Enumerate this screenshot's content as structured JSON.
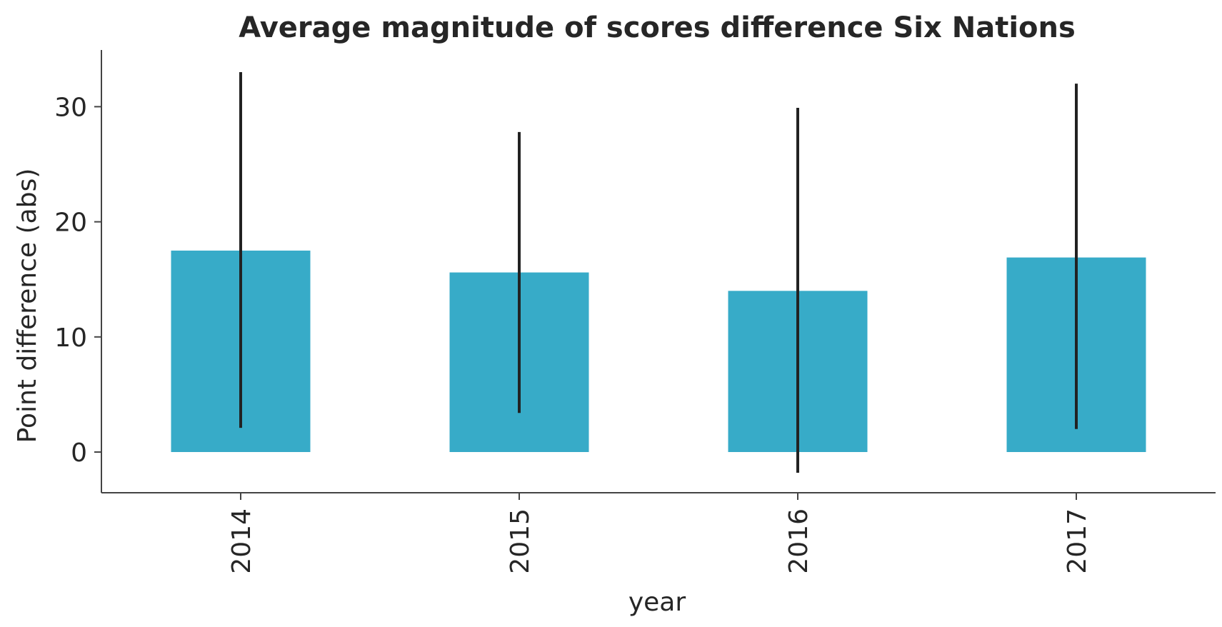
{
  "chart_data": {
    "type": "bar",
    "title": "Average magnitude of scores difference Six Nations",
    "xlabel": "year",
    "ylabel": "Point difference (abs)",
    "categories": [
      "2014",
      "2015",
      "2016",
      "2017"
    ],
    "values": [
      17.5,
      15.6,
      14.0,
      16.9
    ],
    "error_low": [
      2.1,
      3.4,
      -1.8,
      2.0
    ],
    "error_high": [
      33.0,
      27.8,
      29.9,
      32.0
    ],
    "yticks": [
      "0",
      "10",
      "20",
      "30"
    ],
    "ylim": [
      -3.5,
      35
    ],
    "grid": false,
    "legend": "none",
    "colors": {
      "bar": "#37abc8",
      "error_bar": "#222222",
      "axis": "#444444",
      "text": "#262626"
    }
  }
}
